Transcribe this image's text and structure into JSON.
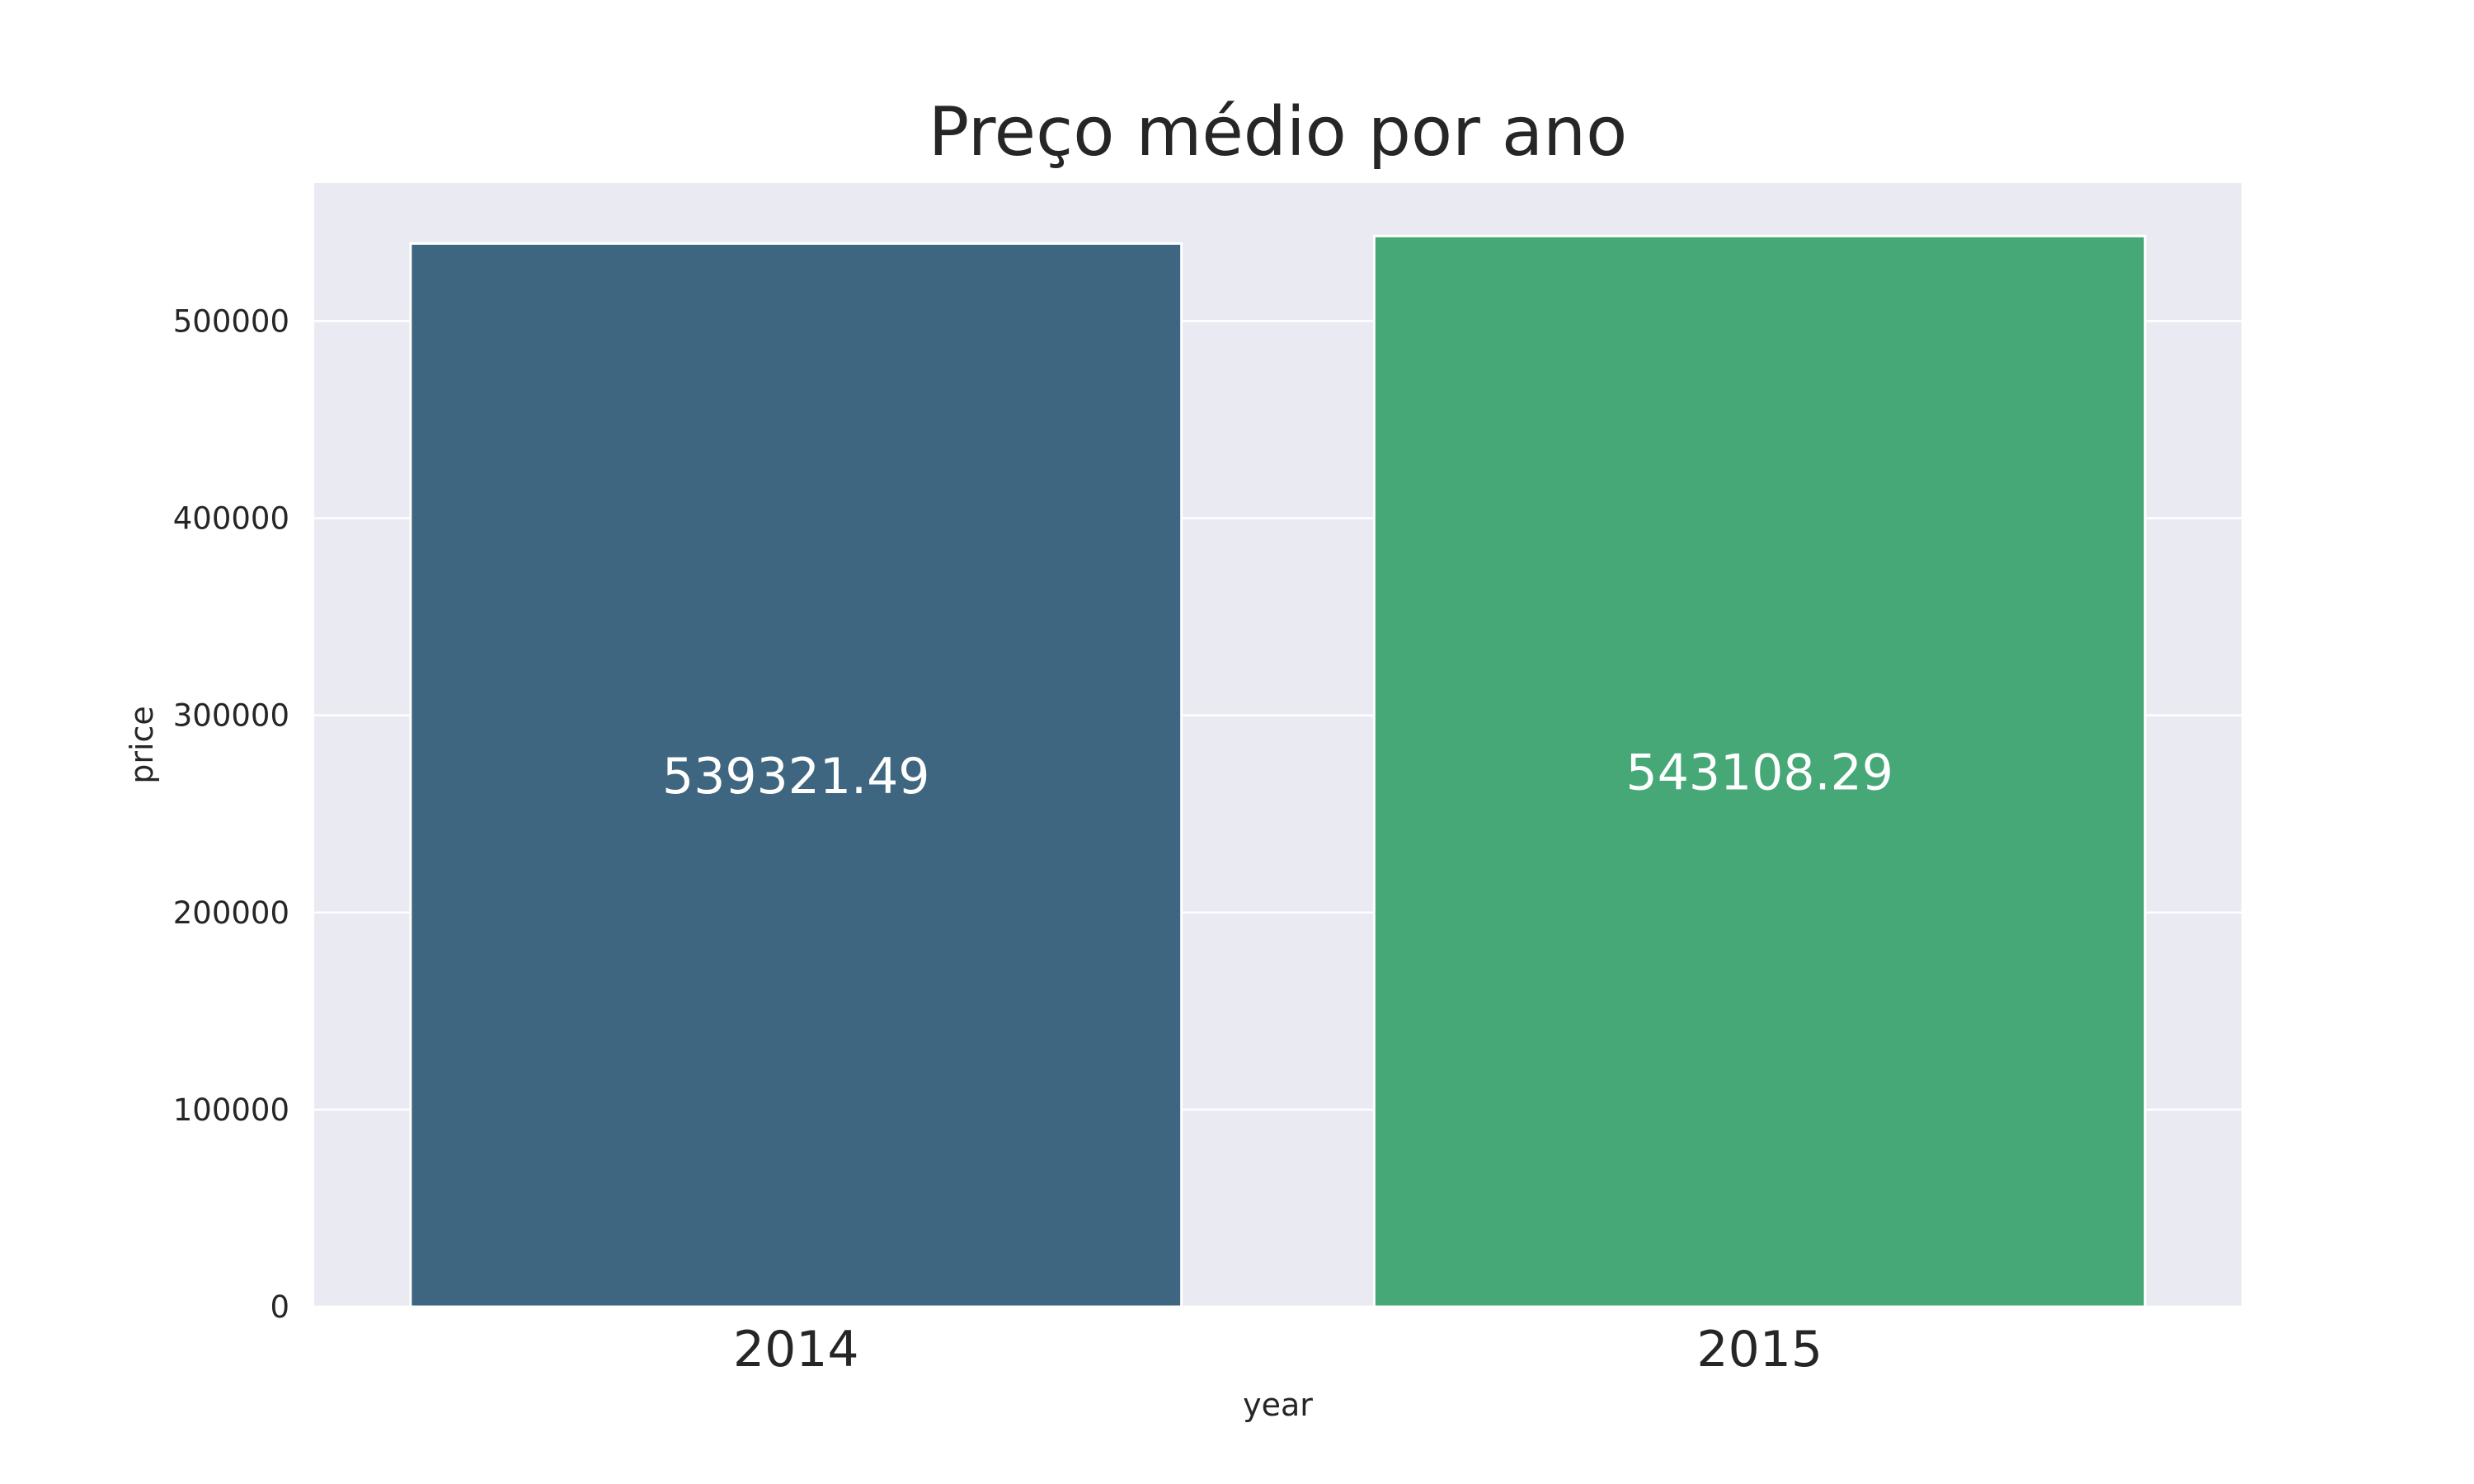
{
  "chart_data": {
    "type": "bar",
    "title": "Preço médio por ano",
    "xlabel": "year",
    "ylabel": "price",
    "categories": [
      "2014",
      "2015"
    ],
    "values": [
      539321.49,
      543108.29
    ],
    "data_labels": [
      "539321.49",
      "543108.29"
    ],
    "bar_colors": [
      "#3e6680",
      "#46a877"
    ],
    "ylim": [
      0,
      570000
    ],
    "yticks": [
      0,
      100000,
      200000,
      300000,
      400000,
      500000
    ],
    "ytick_labels": [
      "0",
      "100000",
      "200000",
      "300000",
      "400000",
      "500000"
    ],
    "grid": true,
    "legend": "none",
    "background": "#eaeaf2",
    "grid_color": "#ffffff"
  }
}
